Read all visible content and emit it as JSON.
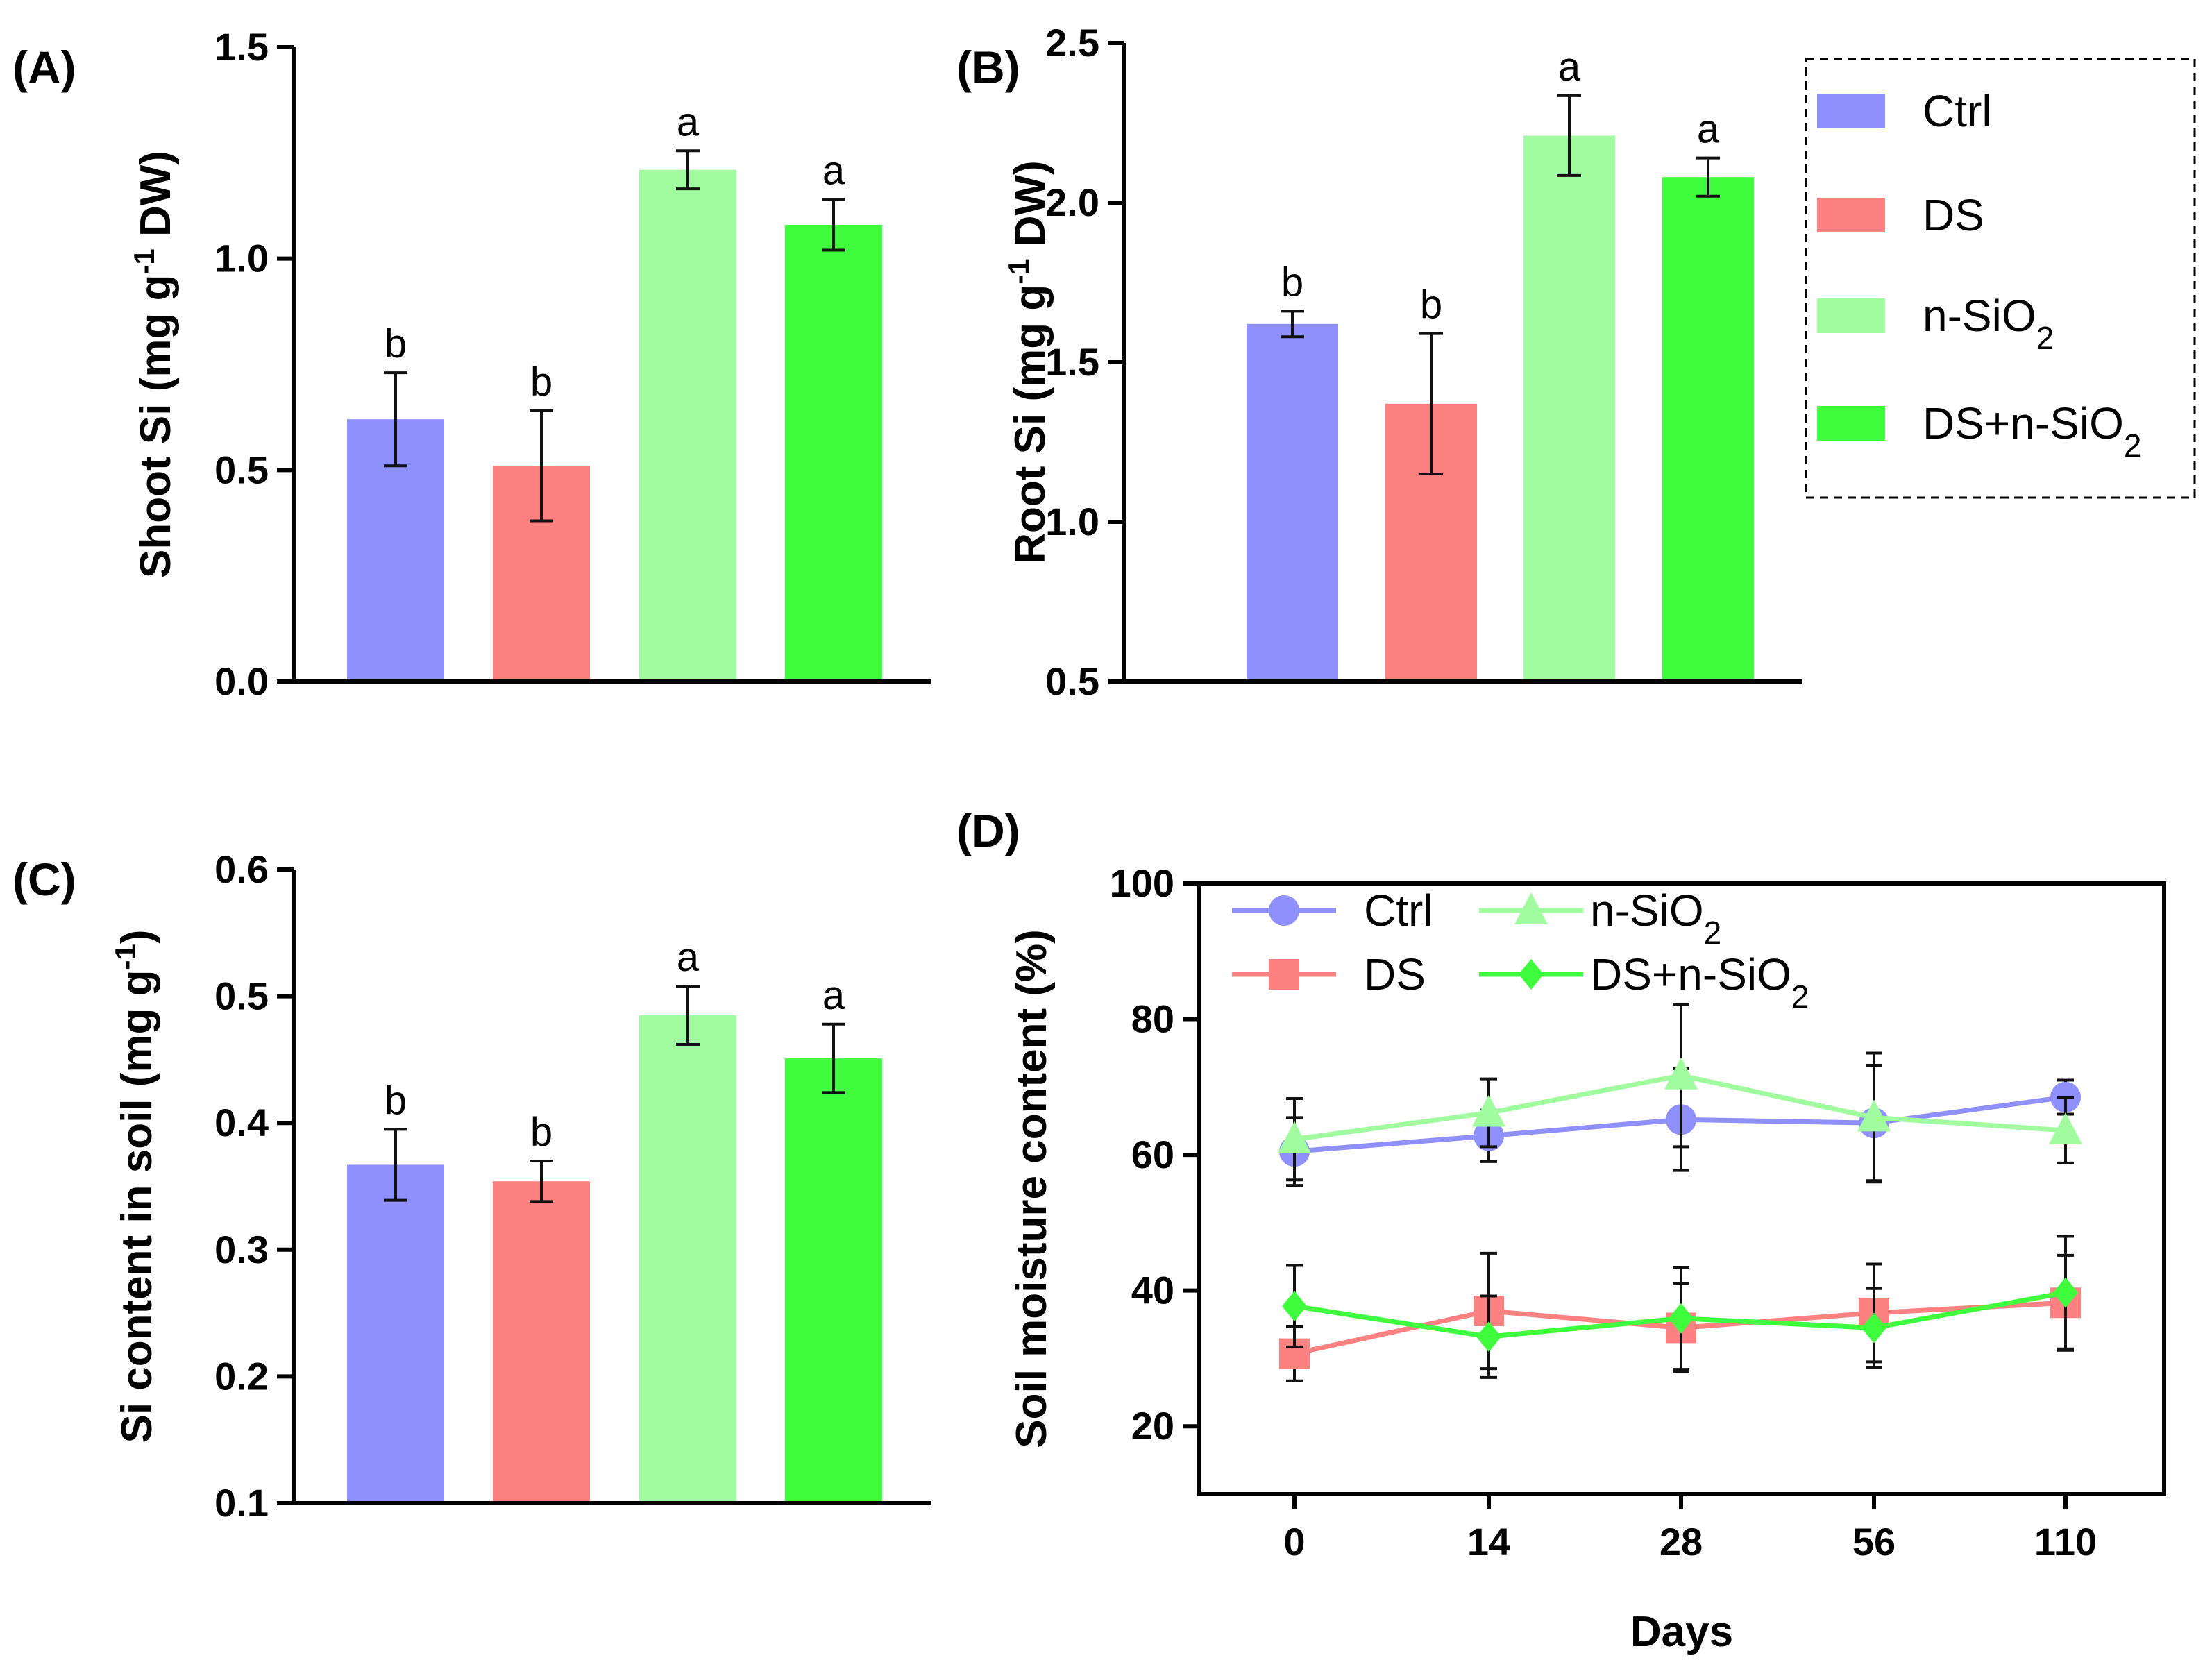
{
  "colors": {
    "ctrl": "#8f8ffd",
    "ds": "#fd8180",
    "nsio2": "#a1fca0",
    "ds_nsio2": "#3ffd3d",
    "axis": "#000000"
  },
  "legend": {
    "entries": [
      {
        "name": "Ctrl",
        "base": "Ctrl",
        "sub": ""
      },
      {
        "name": "DS",
        "base": "DS",
        "sub": ""
      },
      {
        "name": "n-SiO2",
        "base": "n-SiO",
        "sub": "2"
      },
      {
        "name": "DS+n-SiO2",
        "base": "DS+n-SiO",
        "sub": "2"
      }
    ]
  },
  "chart_data": [
    {
      "panel": "(A)",
      "type": "bar",
      "ylabel": "Shoot Si (mg g-1 DW)",
      "ylabel_parts": {
        "pre": "Shoot Si (mg g",
        "sup": "-1",
        "post": " DW)"
      },
      "ylim": [
        0,
        1.5
      ],
      "yticks": [
        0.0,
        0.5,
        1.0,
        1.5
      ],
      "ytick_labels": [
        "0.0",
        "0.5",
        "1.0",
        "1.5"
      ],
      "categories": [
        "Ctrl",
        "DS",
        "n-SiO2",
        "DS+n-SiO2"
      ],
      "values": [
        0.62,
        0.51,
        1.21,
        1.08
      ],
      "errors": [
        0.11,
        0.13,
        0.045,
        0.06
      ],
      "letters": [
        "b",
        "b",
        "a",
        "a"
      ]
    },
    {
      "panel": "(B)",
      "type": "bar",
      "ylabel": "Root Si (mg g-1 DW)",
      "ylabel_parts": {
        "pre": "Root Si (mg g",
        "sup": "-1",
        "post": " DW)"
      },
      "ylim": [
        0.5,
        2.5
      ],
      "yticks": [
        0.5,
        1.0,
        1.5,
        2.0,
        2.5
      ],
      "ytick_labels": [
        "0.5",
        "1.0",
        "1.5",
        "2.0",
        "2.5"
      ],
      "categories": [
        "Ctrl",
        "DS",
        "n-SiO2",
        "DS+n-SiO2"
      ],
      "values": [
        1.62,
        1.37,
        2.21,
        2.08
      ],
      "errors": [
        0.04,
        0.22,
        0.125,
        0.06
      ],
      "letters": [
        "b",
        "b",
        "a",
        "a"
      ]
    },
    {
      "panel": "(C)",
      "type": "bar",
      "ylabel": "Si content in soil (mg g-1)",
      "ylabel_parts": {
        "pre": "Si content in soil (mg g",
        "sup": "-1",
        "post": ")"
      },
      "ylim": [
        0.1,
        0.6
      ],
      "yticks": [
        0.1,
        0.2,
        0.3,
        0.4,
        0.5,
        0.6
      ],
      "ytick_labels": [
        "0.1",
        "0.2",
        "0.3",
        "0.4",
        "0.5",
        "0.6"
      ],
      "categories": [
        "Ctrl",
        "DS",
        "n-SiO2",
        "DS+n-SiO2"
      ],
      "values": [
        0.367,
        0.354,
        0.485,
        0.451
      ],
      "errors": [
        0.028,
        0.016,
        0.023,
        0.027
      ],
      "letters": [
        "b",
        "b",
        "a",
        "a"
      ]
    },
    {
      "panel": "(D)",
      "type": "line",
      "xlabel": "Days",
      "ylabel": "Soil moisture content (%)",
      "x": [
        "0",
        "14",
        "28",
        "56",
        "110"
      ],
      "ylim": [
        10,
        100
      ],
      "yticks": [
        20,
        40,
        60,
        80,
        100
      ],
      "ytick_labels": [
        "20",
        "40",
        "60",
        "80",
        "100"
      ],
      "series": [
        {
          "name": "Ctrl",
          "base": "Ctrl",
          "sub": "",
          "marker": "circle",
          "color_key": "ctrl",
          "values": [
            60.5,
            62.8,
            65.2,
            64.7,
            68.5
          ],
          "errors": [
            5.0,
            3.8,
            7.5,
            8.5,
            2.5
          ]
        },
        {
          "name": "DS",
          "base": "DS",
          "sub": "",
          "marker": "square",
          "color_key": "ds",
          "values": [
            30.7,
            37.0,
            34.5,
            36.7,
            38.2
          ],
          "errors": [
            4.0,
            8.5,
            6.5,
            7.2,
            7.0
          ]
        },
        {
          "name": "n-SiO2",
          "base": "n-SiO",
          "sub": "2",
          "marker": "triangle",
          "color_key": "nsio2",
          "values": [
            62.3,
            66.2,
            71.7,
            65.5,
            63.6
          ],
          "errors": [
            6.0,
            5.0,
            10.5,
            9.5,
            4.8
          ]
        },
        {
          "name": "DS+n-SiO2",
          "base": "DS+n-SiO",
          "sub": "2",
          "marker": "diamond",
          "color_key": "ds_nsio2",
          "values": [
            37.7,
            33.2,
            35.9,
            34.5,
            39.7
          ],
          "errors": [
            6.0,
            6.0,
            7.5,
            5.8,
            8.3
          ]
        }
      ]
    }
  ]
}
